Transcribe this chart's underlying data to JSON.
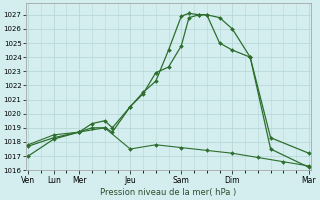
{
  "xlabel": "Pression niveau de la mer( hPa )",
  "background_color": "#d4eef0",
  "grid_color": "#b8d8d8",
  "line_color": "#2d6e2d",
  "ylim": [
    1016,
    1027.8
  ],
  "xlim": [
    -0.1,
    11.1
  ],
  "xtick_positions": [
    0,
    1,
    2,
    4,
    6,
    8,
    11
  ],
  "xtick_labels": [
    "Ven",
    "Lun",
    "Mer",
    "Jeu",
    "Sam",
    "Dim",
    "Mar"
  ],
  "ytick_positions": [
    1016,
    1017,
    1018,
    1019,
    1020,
    1021,
    1022,
    1023,
    1024,
    1025,
    1026,
    1027
  ],
  "series1_x": [
    0,
    1,
    2,
    2.5,
    3,
    3.3,
    4,
    4.5,
    5,
    5.5,
    6,
    6.3,
    6.7,
    7,
    7.5,
    8,
    8.7,
    9.5,
    11
  ],
  "series1_y": [
    1017.0,
    1018.2,
    1018.7,
    1019.3,
    1019.5,
    1019.0,
    1020.5,
    1021.4,
    1022.9,
    1023.3,
    1024.8,
    1026.8,
    1027.0,
    1027.0,
    1026.8,
    1026.0,
    1024.0,
    1018.3,
    1017.2
  ],
  "series2_x": [
    0,
    1,
    2,
    2.5,
    3,
    3.3,
    4,
    4.5,
    5,
    5.5,
    6,
    6.3,
    6.7,
    7,
    7.5,
    8,
    8.7,
    9.5,
    11
  ],
  "series2_y": [
    1017.7,
    1018.3,
    1018.7,
    1019.0,
    1019.0,
    1018.7,
    1020.5,
    1021.5,
    1022.3,
    1024.5,
    1026.9,
    1027.1,
    1027.0,
    1027.0,
    1025.0,
    1024.5,
    1024.0,
    1017.5,
    1016.2
  ],
  "series3_x": [
    0,
    1,
    2,
    3,
    4,
    5,
    6,
    7,
    8,
    9,
    10,
    11
  ],
  "series3_y": [
    1017.8,
    1018.5,
    1018.7,
    1019.0,
    1017.5,
    1017.8,
    1017.6,
    1017.4,
    1017.2,
    1016.9,
    1016.6,
    1016.3
  ]
}
